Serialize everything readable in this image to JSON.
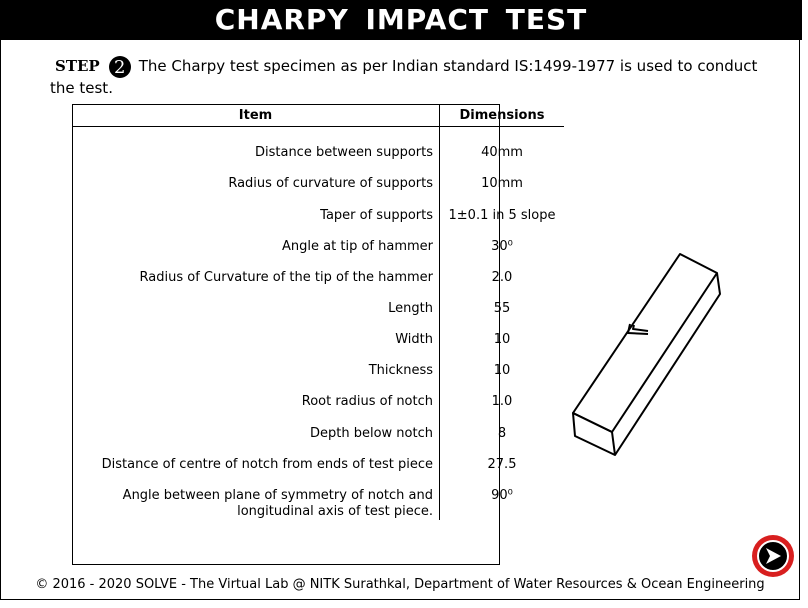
{
  "title": "CHARPY IMPACT TEST",
  "step": {
    "label": "STEP",
    "number": "2",
    "text": "The Charpy test specimen as per Indian standard IS:1499-1977 is used to conduct the test."
  },
  "table": {
    "headers": [
      "Item",
      "Dimensions"
    ],
    "rows": [
      {
        "item": "Distance between supports",
        "value": "40mm"
      },
      {
        "item": "Radius of curvature of supports",
        "value": "10mm"
      },
      {
        "item": "Taper of supports",
        "value": "1±0.1 in 5 slope"
      },
      {
        "item": "Angle at tip of hammer",
        "value": "30⁰"
      },
      {
        "item": "Radius of Curvature of the tip of the hammer",
        "value": "2.0"
      },
      {
        "item": "Length",
        "value": "55"
      },
      {
        "item": "Width",
        "value": "10"
      },
      {
        "item": "Thickness",
        "value": "10"
      },
      {
        "item": "Root radius of notch",
        "value": "1.0"
      },
      {
        "item": "Depth below notch",
        "value": "8"
      },
      {
        "item": "Distance of centre of notch from ends of test piece",
        "value": "27.5"
      },
      {
        "item": "Angle between plane of symmetry of notch and longitudinal  axis of test piece.",
        "value": "90⁰"
      }
    ]
  },
  "footer": "© 2016 - 2020 SOLVE - The Virtual Lab @ NITK Surathkal, Department of Water Resources & Ocean Engineering",
  "icons": {
    "next": "next-arrow-icon",
    "specimen": "charpy-specimen-illustration"
  },
  "colors": {
    "title_bg": "#000000",
    "title_text": "#ffffff",
    "next_ring": "#d81f1f"
  }
}
